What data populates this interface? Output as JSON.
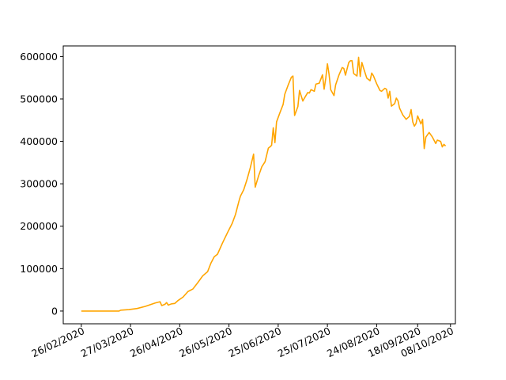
{
  "chart_data": {
    "type": "line",
    "title": "",
    "xlabel": "",
    "ylabel": "",
    "line_color": "#FFA500",
    "grid": false,
    "legend": "none",
    "xlim": [
      "2020-02-15",
      "2020-10-11"
    ],
    "ylim": [
      -30000,
      625000
    ],
    "x_ticks": [
      {
        "date": "2020-02-26",
        "label": "26/02/2020"
      },
      {
        "date": "2020-03-27",
        "label": "27/03/2020"
      },
      {
        "date": "2020-04-26",
        "label": "26/04/2020"
      },
      {
        "date": "2020-05-26",
        "label": "26/05/2020"
      },
      {
        "date": "2020-06-25",
        "label": "25/06/2020"
      },
      {
        "date": "2020-07-25",
        "label": "25/07/2020"
      },
      {
        "date": "2020-08-24",
        "label": "24/08/2020"
      },
      {
        "date": "2020-09-18",
        "label": "18/09/2020"
      },
      {
        "date": "2020-10-08",
        "label": "08/10/2020"
      }
    ],
    "y_ticks": [
      {
        "value": 0,
        "label": "0"
      },
      {
        "value": 100000,
        "label": "100000"
      },
      {
        "value": 200000,
        "label": "200000"
      },
      {
        "value": 300000,
        "label": "300000"
      },
      {
        "value": 400000,
        "label": "400000"
      },
      {
        "value": 500000,
        "label": "500000"
      },
      {
        "value": 600000,
        "label": "600000"
      }
    ],
    "series": [
      {
        "points": [
          [
            "2020-02-26",
            0
          ],
          [
            "2020-03-05",
            0
          ],
          [
            "2020-03-15",
            0
          ],
          [
            "2020-03-20",
            0
          ],
          [
            "2020-03-21",
            2000
          ],
          [
            "2020-03-26",
            3500
          ],
          [
            "2020-03-31",
            6000
          ],
          [
            "2020-04-05",
            11000
          ],
          [
            "2020-04-08",
            15000
          ],
          [
            "2020-04-11",
            19000
          ],
          [
            "2020-04-14",
            22000
          ],
          [
            "2020-04-15",
            13000
          ],
          [
            "2020-04-17",
            16000
          ],
          [
            "2020-04-18",
            20000
          ],
          [
            "2020-04-19",
            14000
          ],
          [
            "2020-04-21",
            17000
          ],
          [
            "2020-04-23",
            18000
          ],
          [
            "2020-04-25",
            25000
          ],
          [
            "2020-04-28",
            33000
          ],
          [
            "2020-05-01",
            46000
          ],
          [
            "2020-05-04",
            52000
          ],
          [
            "2020-05-07",
            67000
          ],
          [
            "2020-05-10",
            83000
          ],
          [
            "2020-05-13",
            93000
          ],
          [
            "2020-05-15",
            113000
          ],
          [
            "2020-05-17",
            128000
          ],
          [
            "2020-05-19",
            134000
          ],
          [
            "2020-05-22",
            160000
          ],
          [
            "2020-05-25",
            184000
          ],
          [
            "2020-05-28",
            207000
          ],
          [
            "2020-05-30",
            228000
          ],
          [
            "2020-06-01",
            258000
          ],
          [
            "2020-06-02",
            271000
          ],
          [
            "2020-06-04",
            286000
          ],
          [
            "2020-06-06",
            310000
          ],
          [
            "2020-06-08",
            338000
          ],
          [
            "2020-06-10",
            370000
          ],
          [
            "2020-06-11",
            292000
          ],
          [
            "2020-06-13",
            318000
          ],
          [
            "2020-06-15",
            340000
          ],
          [
            "2020-06-17",
            352000
          ],
          [
            "2020-06-19",
            384000
          ],
          [
            "2020-06-20",
            387000
          ],
          [
            "2020-06-21",
            391000
          ],
          [
            "2020-06-22",
            432000
          ],
          [
            "2020-06-23",
            397000
          ],
          [
            "2020-06-24",
            446000
          ],
          [
            "2020-06-26",
            467000
          ],
          [
            "2020-06-28",
            487000
          ],
          [
            "2020-06-29",
            511000
          ],
          [
            "2020-07-01",
            532000
          ],
          [
            "2020-07-03",
            551000
          ],
          [
            "2020-07-04",
            554000
          ],
          [
            "2020-07-05",
            461000
          ],
          [
            "2020-07-07",
            482000
          ],
          [
            "2020-07-08",
            520000
          ],
          [
            "2020-07-10",
            495000
          ],
          [
            "2020-07-11",
            502000
          ],
          [
            "2020-07-13",
            515000
          ],
          [
            "2020-07-14",
            514000
          ],
          [
            "2020-07-15",
            522000
          ],
          [
            "2020-07-17",
            518000
          ],
          [
            "2020-07-18",
            535000
          ],
          [
            "2020-07-20",
            537000
          ],
          [
            "2020-07-22",
            557000
          ],
          [
            "2020-07-23",
            523000
          ],
          [
            "2020-07-24",
            549000
          ],
          [
            "2020-07-25",
            583000
          ],
          [
            "2020-07-26",
            558000
          ],
          [
            "2020-07-27",
            522000
          ],
          [
            "2020-07-29",
            508000
          ],
          [
            "2020-07-30",
            533000
          ],
          [
            "2020-08-01",
            556000
          ],
          [
            "2020-08-03",
            574000
          ],
          [
            "2020-08-04",
            572000
          ],
          [
            "2020-08-05",
            556000
          ],
          [
            "2020-08-07",
            586000
          ],
          [
            "2020-08-08",
            590000
          ],
          [
            "2020-08-09",
            590000
          ],
          [
            "2020-08-10",
            560000
          ],
          [
            "2020-08-12",
            554000
          ],
          [
            "2020-08-13",
            598000
          ],
          [
            "2020-08-14",
            553000
          ],
          [
            "2020-08-15",
            586000
          ],
          [
            "2020-08-16",
            573000
          ],
          [
            "2020-08-18",
            549000
          ],
          [
            "2020-08-20",
            543000
          ],
          [
            "2020-08-21",
            561000
          ],
          [
            "2020-08-22",
            555000
          ],
          [
            "2020-08-24",
            536000
          ],
          [
            "2020-08-26",
            520000
          ],
          [
            "2020-08-27",
            518000
          ],
          [
            "2020-08-29",
            525000
          ],
          [
            "2020-08-30",
            523000
          ],
          [
            "2020-08-31",
            502000
          ],
          [
            "2020-09-01",
            518000
          ],
          [
            "2020-09-02",
            483000
          ],
          [
            "2020-09-04",
            489000
          ],
          [
            "2020-09-05",
            502000
          ],
          [
            "2020-09-06",
            496000
          ],
          [
            "2020-09-07",
            478000
          ],
          [
            "2020-09-09",
            462000
          ],
          [
            "2020-09-11",
            452000
          ],
          [
            "2020-09-13",
            459000
          ],
          [
            "2020-09-14",
            475000
          ],
          [
            "2020-09-15",
            446000
          ],
          [
            "2020-09-16",
            436000
          ],
          [
            "2020-09-17",
            442000
          ],
          [
            "2020-09-18",
            460000
          ],
          [
            "2020-09-20",
            441000
          ],
          [
            "2020-09-21",
            452000
          ],
          [
            "2020-09-22",
            383000
          ],
          [
            "2020-09-23",
            410000
          ],
          [
            "2020-09-25",
            421000
          ],
          [
            "2020-09-27",
            410000
          ],
          [
            "2020-09-29",
            395000
          ],
          [
            "2020-09-30",
            403000
          ],
          [
            "2020-10-02",
            400000
          ],
          [
            "2020-10-03",
            387000
          ],
          [
            "2020-10-04",
            393000
          ],
          [
            "2020-10-05",
            389000
          ]
        ]
      }
    ]
  }
}
